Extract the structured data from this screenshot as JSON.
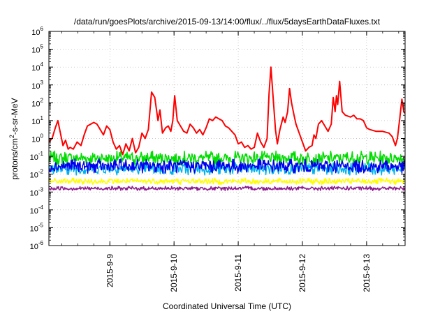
{
  "chart_data": {
    "type": "line",
    "title": "/data/run/goesPlots/archive/2015-09-13/14:00/flux/../flux/5daysEarthDataFluxes.txt",
    "xlabel": "Coordinated Universal Time (UTC)",
    "ylabel_parts": [
      "protons/cm",
      "2",
      "-s-sr-MeV"
    ],
    "yscale": "log",
    "ylim": [
      -6,
      6
    ],
    "xlim": [
      0,
      5.55
    ],
    "grid": true,
    "xticks": [
      {
        "x": 0.95,
        "label": "2015-9-9"
      },
      {
        "x": 1.95,
        "label": "2015-9-10"
      },
      {
        "x": 2.95,
        "label": "2015-9-11"
      },
      {
        "x": 3.95,
        "label": "2015-9-12"
      },
      {
        "x": 4.95,
        "label": "2015-9-13"
      }
    ],
    "yticks": [
      {
        "exp": 6,
        "label": "10",
        "sup": "6"
      },
      {
        "exp": 5,
        "label": "10",
        "sup": "5"
      },
      {
        "exp": 4,
        "label": "10",
        "sup": "4"
      },
      {
        "exp": 3,
        "label": "10",
        "sup": "3"
      },
      {
        "exp": 2,
        "label": "10",
        "sup": "2"
      },
      {
        "exp": 1,
        "label": "10",
        "sup": "1"
      },
      {
        "exp": 0,
        "label": "10",
        "sup": "0"
      },
      {
        "exp": -1,
        "label": "10",
        "sup": "-1"
      },
      {
        "exp": -2,
        "label": "10",
        "sup": "-2"
      },
      {
        "exp": -3,
        "label": "10",
        "sup": "-3"
      },
      {
        "exp": -4,
        "label": "10",
        "sup": "-4"
      },
      {
        "exp": -5,
        "label": "10",
        "sup": "-5"
      },
      {
        "exp": -6,
        "label": "10",
        "sup": "-6"
      }
    ],
    "series": [
      {
        "color": "#ff0000",
        "noisy": false,
        "points": [
          [
            0.0,
            -0.2
          ],
          [
            0.05,
            0.0
          ],
          [
            0.1,
            0.6
          ],
          [
            0.14,
            1.0
          ],
          [
            0.18,
            0.3
          ],
          [
            0.22,
            -0.4
          ],
          [
            0.26,
            -0.1
          ],
          [
            0.3,
            -0.6
          ],
          [
            0.33,
            -0.5
          ],
          [
            0.38,
            -0.6
          ],
          [
            0.44,
            -0.2
          ],
          [
            0.5,
            -0.4
          ],
          [
            0.55,
            0.2
          ],
          [
            0.6,
            0.7
          ],
          [
            0.7,
            0.9
          ],
          [
            0.75,
            0.8
          ],
          [
            0.8,
            0.5
          ],
          [
            0.85,
            0.2
          ],
          [
            0.9,
            0.7
          ],
          [
            0.95,
            0.5
          ],
          [
            1.0,
            -0.2
          ],
          [
            1.05,
            -0.6
          ],
          [
            1.1,
            -0.4
          ],
          [
            1.15,
            -0.9
          ],
          [
            1.2,
            -0.3
          ],
          [
            1.25,
            -0.7
          ],
          [
            1.3,
            0.0
          ],
          [
            1.35,
            -0.8
          ],
          [
            1.4,
            -0.5
          ],
          [
            1.45,
            0.3
          ],
          [
            1.5,
            0.0
          ],
          [
            1.55,
            0.5
          ],
          [
            1.6,
            2.6
          ],
          [
            1.65,
            2.3
          ],
          [
            1.7,
            1.0
          ],
          [
            1.73,
            1.6
          ],
          [
            1.77,
            0.3
          ],
          [
            1.82,
            0.6
          ],
          [
            1.86,
            0.7
          ],
          [
            1.9,
            0.4
          ],
          [
            1.93,
            1.0
          ],
          [
            1.96,
            2.4
          ],
          [
            2.0,
            1.0
          ],
          [
            2.05,
            0.7
          ],
          [
            2.1,
            0.4
          ],
          [
            2.15,
            0.3
          ],
          [
            2.2,
            0.8
          ],
          [
            2.25,
            0.6
          ],
          [
            2.3,
            0.3
          ],
          [
            2.35,
            0.5
          ],
          [
            2.4,
            0.2
          ],
          [
            2.45,
            0.6
          ],
          [
            2.5,
            1.1
          ],
          [
            2.55,
            1.0
          ],
          [
            2.6,
            1.2
          ],
          [
            2.65,
            1.1
          ],
          [
            2.7,
            1.0
          ],
          [
            2.75,
            0.7
          ],
          [
            2.8,
            0.6
          ],
          [
            2.85,
            0.4
          ],
          [
            2.9,
            0.2
          ],
          [
            2.95,
            -0.3
          ],
          [
            3.0,
            -0.2
          ],
          [
            3.05,
            -0.5
          ],
          [
            3.1,
            -0.4
          ],
          [
            3.15,
            -0.6
          ],
          [
            3.2,
            -0.5
          ],
          [
            3.25,
            0.3
          ],
          [
            3.3,
            -0.2
          ],
          [
            3.35,
            -0.5
          ],
          [
            3.4,
            0.0
          ],
          [
            3.43,
            2.5
          ],
          [
            3.46,
            4.0
          ],
          [
            3.5,
            2.0
          ],
          [
            3.53,
            0.5
          ],
          [
            3.56,
            -0.3
          ],
          [
            3.6,
            0.5
          ],
          [
            3.65,
            1.2
          ],
          [
            3.68,
            0.9
          ],
          [
            3.72,
            1.5
          ],
          [
            3.75,
            2.8
          ],
          [
            3.78,
            2.0
          ],
          [
            3.82,
            1.3
          ],
          [
            3.85,
            0.8
          ],
          [
            3.9,
            0.3
          ],
          [
            3.95,
            -0.2
          ],
          [
            4.0,
            -0.7
          ],
          [
            4.05,
            -0.5
          ],
          [
            4.1,
            -0.4
          ],
          [
            4.13,
            0.2
          ],
          [
            4.16,
            0.0
          ],
          [
            4.2,
            0.8
          ],
          [
            4.25,
            1.0
          ],
          [
            4.3,
            0.7
          ],
          [
            4.35,
            0.4
          ],
          [
            4.4,
            0.8
          ],
          [
            4.43,
            2.3
          ],
          [
            4.46,
            1.5
          ],
          [
            4.48,
            2.4
          ],
          [
            4.5,
            1.9
          ],
          [
            4.53,
            3.2
          ],
          [
            4.57,
            1.5
          ],
          [
            4.62,
            1.3
          ],
          [
            4.7,
            1.2
          ],
          [
            4.75,
            1.3
          ],
          [
            4.8,
            1.1
          ],
          [
            4.85,
            1.1
          ],
          [
            4.9,
            1.0
          ],
          [
            4.95,
            0.6
          ],
          [
            5.0,
            0.5
          ],
          [
            5.1,
            0.4
          ],
          [
            5.2,
            0.4
          ],
          [
            5.3,
            0.3
          ],
          [
            5.35,
            0.1
          ],
          [
            5.4,
            -0.4
          ],
          [
            5.43,
            0.0
          ],
          [
            5.47,
            1.2
          ],
          [
            5.5,
            2.2
          ],
          [
            5.53,
            1.5
          ],
          [
            5.55,
            1.4
          ]
        ]
      },
      {
        "color": "#00dd00",
        "noisy": true,
        "base": -1.1,
        "amp": 0.4
      },
      {
        "color": "#00b3ee",
        "noisy": true,
        "base": -1.7,
        "amp": 0.35
      },
      {
        "color": "#0000ee",
        "noisy": true,
        "base": -1.55,
        "amp": 0.4
      },
      {
        "color": "#ffff00",
        "noisy": true,
        "base": -2.4,
        "amp": 0.18
      },
      {
        "color": "#8b1a8b",
        "noisy": true,
        "base": -2.8,
        "amp": 0.12
      }
    ]
  }
}
